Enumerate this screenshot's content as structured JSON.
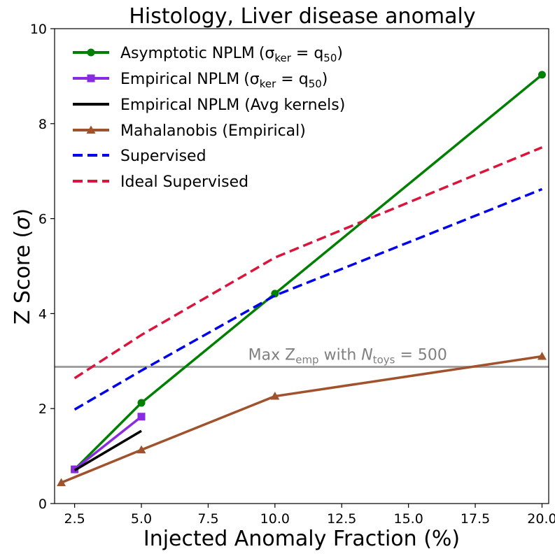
{
  "chart_data": {
    "type": "line",
    "title": "Histology, Liver disease anomaly",
    "xlabel": "Injected Anomaly Fraction (%)",
    "ylabel_text": "Z Score (",
    "ylabel_symbol": "σ",
    "ylabel_close": ")",
    "xlim": [
      1.75,
      20.25
    ],
    "ylim": [
      0,
      10
    ],
    "xticks": [
      2.5,
      5.0,
      7.5,
      10.0,
      12.5,
      15.0,
      17.5,
      20.0
    ],
    "xtick_labels": [
      "2.5",
      "5.0",
      "7.5",
      "10.0",
      "12.5",
      "15.0",
      "17.5",
      "20.0"
    ],
    "yticks": [
      0,
      2,
      4,
      6,
      8,
      10
    ],
    "ytick_labels": [
      "0",
      "2",
      "4",
      "6",
      "8",
      "10"
    ],
    "grid": false,
    "legend_position": "top-left",
    "series": [
      {
        "id": "asymptotic-nplm",
        "name": "Asymptotic NPLM",
        "name_suffix": "(σ",
        "sub1": "ker",
        "mid": " = q",
        "sub2": "50",
        "close": ")",
        "color": "#008000",
        "dash": "solid",
        "marker": "circle",
        "x": [
          2.5,
          5,
          10,
          20
        ],
        "y": [
          0.72,
          2.12,
          4.42,
          9.03
        ]
      },
      {
        "id": "empirical-nplm-q50",
        "name": "Empirical NPLM",
        "name_suffix": "(σ",
        "sub1": "ker",
        "mid": " = q",
        "sub2": "50",
        "close": ")",
        "color": "#8a2be2",
        "dash": "solid",
        "marker": "square",
        "x": [
          2.5,
          5
        ],
        "y": [
          0.72,
          1.83
        ]
      },
      {
        "id": "empirical-nplm-avg",
        "name": "Empirical NPLM (Avg kernels)",
        "color": "#000000",
        "dash": "solid",
        "marker": "none",
        "x": [
          2.5,
          5
        ],
        "y": [
          0.7,
          1.53
        ]
      },
      {
        "id": "mahalanobis",
        "name": "Mahalanobis (Empirical)",
        "color": "#a0522d",
        "dash": "solid",
        "marker": "triangle",
        "x": [
          2,
          5,
          10,
          20
        ],
        "y": [
          0.44,
          1.13,
          2.26,
          3.1
        ]
      },
      {
        "id": "supervised",
        "name": "Supervised",
        "color": "#0000ee",
        "dash": "dashed",
        "marker": "none",
        "x": [
          2.5,
          5,
          10,
          20
        ],
        "y": [
          1.98,
          2.8,
          4.38,
          6.62
        ]
      },
      {
        "id": "ideal-supervised",
        "name": "Ideal Supervised",
        "color": "#dc143c",
        "dash": "dashed",
        "marker": "none",
        "x": [
          2.5,
          5,
          10,
          20
        ],
        "y": [
          2.64,
          3.55,
          5.18,
          7.5
        ]
      }
    ],
    "hline": {
      "y": 2.88,
      "color": "#a0a0a0",
      "label_prefix": "Max Z",
      "label_sub": "emp",
      "label_mid": " with ",
      "label_var": "N",
      "label_sub2": "toys",
      "label_eq": " = 500",
      "label_x": 9.0
    }
  }
}
